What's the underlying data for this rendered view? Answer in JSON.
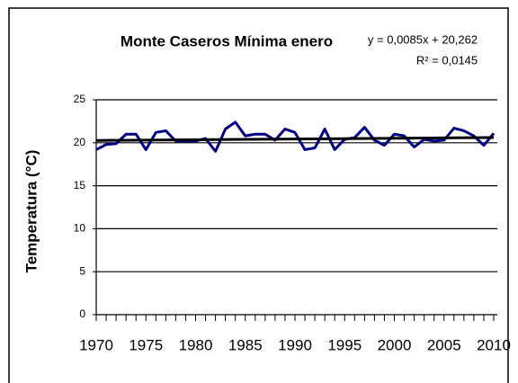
{
  "chart_data": {
    "type": "line",
    "title": "Monte Caseros Mínima enero",
    "y_label": "Temperatura (°C)",
    "x": [
      1970,
      1971,
      1972,
      1973,
      1974,
      1975,
      1976,
      1977,
      1978,
      1979,
      1980,
      1981,
      1982,
      1983,
      1984,
      1985,
      1986,
      1987,
      1988,
      1989,
      1990,
      1991,
      1992,
      1993,
      1994,
      1995,
      1996,
      1997,
      1998,
      1999,
      2000,
      2001,
      2002,
      2003,
      2004,
      2005,
      2006,
      2007,
      2008,
      2009,
      2010
    ],
    "series": [
      {
        "color": "#000080",
        "values": [
          19.2,
          19.8,
          19.9,
          21.0,
          21.0,
          19.2,
          21.2,
          21.4,
          20.2,
          20.2,
          20.2,
          20.5,
          19.0,
          21.6,
          22.4,
          20.8,
          21.0,
          21.0,
          20.3,
          21.6,
          21.2,
          19.2,
          19.4,
          21.6,
          19.2,
          20.4,
          20.6,
          21.8,
          20.3,
          19.7,
          21.0,
          20.8,
          19.5,
          20.4,
          20.2,
          20.3,
          21.7,
          21.4,
          20.8,
          19.7,
          21.1
        ]
      }
    ],
    "trendline": {
      "slope": 0.0085,
      "intercept": 20.262,
      "color": "#000000",
      "equation": "y = 0,0085x + 20,262",
      "r2": "R² = 0,0145"
    },
    "xlim": [
      1970,
      2010
    ],
    "xticks": [
      1970,
      1975,
      1980,
      1985,
      1990,
      1995,
      2000,
      2005,
      2010
    ],
    "ylim": [
      0,
      25
    ],
    "yticks": [
      0,
      5,
      10,
      15,
      20,
      25
    ],
    "grid": true
  }
}
